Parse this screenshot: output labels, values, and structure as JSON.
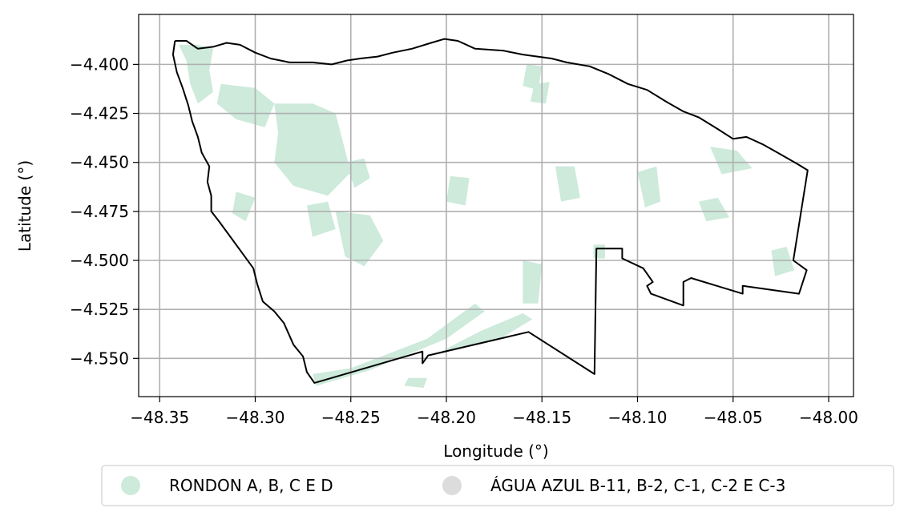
{
  "chart_data": {
    "type": "map",
    "xlabel": "Longitude (°)",
    "ylabel": "Latitude (°)",
    "xlim": [
      -48.361,
      -47.987
    ],
    "ylim": [
      -4.5695,
      -4.3745
    ],
    "x_ticks": [
      -48.35,
      -48.3,
      -48.25,
      -48.2,
      -48.15,
      -48.1,
      -48.05,
      -48.0
    ],
    "x_tick_labels": [
      "−48.35",
      "−48.30",
      "−48.25",
      "−48.20",
      "−48.15",
      "−48.10",
      "−48.05",
      "−48.00"
    ],
    "y_ticks": [
      -4.4,
      -4.425,
      -4.45,
      -4.475,
      -4.5,
      -4.525,
      -4.55
    ],
    "y_tick_labels": [
      "−4.400",
      "−4.425",
      "−4.450",
      "−4.475",
      "−4.500",
      "−4.525",
      "−4.550"
    ],
    "grid": true,
    "legend_position": "below",
    "colors": {
      "boundary": "#000000",
      "grid": "#b0b0b0",
      "rondon": "#cdeadb",
      "agua_azul": "#dcdcdc"
    },
    "legend": [
      {
        "label": "RONDON A, B, C E D",
        "color": "#cdeadb"
      },
      {
        "label": "ÁGUA AZUL B-11, B-2, C-1, C-2 E C-3",
        "color": "#dcdcdc"
      }
    ],
    "boundary": [
      [
        -48.342,
        -4.388
      ],
      [
        -48.336,
        -4.388
      ],
      [
        -48.33,
        -4.392
      ],
      [
        -48.322,
        -4.391
      ],
      [
        -48.315,
        -4.389
      ],
      [
        -48.308,
        -4.39
      ],
      [
        -48.3,
        -4.394
      ],
      [
        -48.292,
        -4.397
      ],
      [
        -48.282,
        -4.399
      ],
      [
        -48.27,
        -4.399
      ],
      [
        -48.26,
        -4.4
      ],
      [
        -48.252,
        -4.398
      ],
      [
        -48.245,
        -4.397
      ],
      [
        -48.236,
        -4.396
      ],
      [
        -48.228,
        -4.394
      ],
      [
        -48.218,
        -4.392
      ],
      [
        -48.208,
        -4.389
      ],
      [
        -48.201,
        -4.387
      ],
      [
        -48.194,
        -4.388
      ],
      [
        -48.185,
        -4.392
      ],
      [
        -48.17,
        -4.393
      ],
      [
        -48.16,
        -4.395
      ],
      [
        -48.145,
        -4.397
      ],
      [
        -48.137,
        -4.399
      ],
      [
        -48.125,
        -4.401
      ],
      [
        -48.115,
        -4.405
      ],
      [
        -48.105,
        -4.41
      ],
      [
        -48.095,
        -4.413
      ],
      [
        -48.085,
        -4.419
      ],
      [
        -48.076,
        -4.424
      ],
      [
        -48.068,
        -4.427
      ],
      [
        -48.058,
        -4.433
      ],
      [
        -48.05,
        -4.438
      ],
      [
        -48.043,
        -4.437
      ],
      [
        -48.034,
        -4.441
      ],
      [
        -48.025,
        -4.446
      ],
      [
        -48.016,
        -4.451
      ],
      [
        -48.011,
        -4.454
      ],
      [
        -48.0185,
        -4.5
      ],
      [
        -48.0115,
        -4.505
      ],
      [
        -48.0155,
        -4.517
      ],
      [
        -48.045,
        -4.513
      ],
      [
        -48.045,
        -4.517
      ],
      [
        -48.072,
        -4.509
      ],
      [
        -48.076,
        -4.511
      ],
      [
        -48.076,
        -4.523
      ],
      [
        -48.093,
        -4.517
      ],
      [
        -48.095,
        -4.513
      ],
      [
        -48.092,
        -4.511
      ],
      [
        -48.097,
        -4.504
      ],
      [
        -48.108,
        -4.499
      ],
      [
        -48.108,
        -4.494
      ],
      [
        -48.1215,
        -4.494
      ],
      [
        -48.1225,
        -4.558
      ],
      [
        -48.157,
        -4.5365
      ],
      [
        -48.2095,
        -4.5485
      ],
      [
        -48.2125,
        -4.5525
      ],
      [
        -48.2125,
        -4.5465
      ],
      [
        -48.269,
        -4.5625
      ],
      [
        -48.273,
        -4.557
      ],
      [
        -48.275,
        -4.549
      ],
      [
        -48.28,
        -4.543
      ],
      [
        -48.285,
        -4.532
      ],
      [
        -48.29,
        -4.526
      ],
      [
        -48.296,
        -4.521
      ],
      [
        -48.299,
        -4.512
      ],
      [
        -48.301,
        -4.504
      ],
      [
        -48.307,
        -4.496
      ],
      [
        -48.313,
        -4.488
      ],
      [
        -48.319,
        -4.48
      ],
      [
        -48.323,
        -4.475
      ],
      [
        -48.323,
        -4.467
      ],
      [
        -48.325,
        -4.46
      ],
      [
        -48.324,
        -4.452
      ],
      [
        -48.328,
        -4.445
      ],
      [
        -48.33,
        -4.437
      ],
      [
        -48.333,
        -4.429
      ],
      [
        -48.335,
        -4.421
      ],
      [
        -48.338,
        -4.412
      ],
      [
        -48.341,
        -4.404
      ],
      [
        -48.343,
        -4.395
      ],
      [
        -48.342,
        -4.388
      ]
    ],
    "rondon_areas": [
      [
        [
          -48.34,
          -4.39
        ],
        [
          -48.33,
          -4.39
        ],
        [
          -48.322,
          -4.392
        ],
        [
          -48.324,
          -4.403
        ],
        [
          -48.322,
          -4.414
        ],
        [
          -48.33,
          -4.42
        ],
        [
          -48.334,
          -4.41
        ],
        [
          -48.336,
          -4.398
        ]
      ],
      [
        [
          -48.318,
          -4.41
        ],
        [
          -48.3,
          -4.412
        ],
        [
          -48.29,
          -4.42
        ],
        [
          -48.295,
          -4.432
        ],
        [
          -48.31,
          -4.428
        ],
        [
          -48.32,
          -4.42
        ]
      ],
      [
        [
          -48.29,
          -4.42
        ],
        [
          -48.27,
          -4.42
        ],
        [
          -48.258,
          -4.425
        ],
        [
          -48.254,
          -4.44
        ],
        [
          -48.25,
          -4.455
        ],
        [
          -48.262,
          -4.467
        ],
        [
          -48.28,
          -4.462
        ],
        [
          -48.29,
          -4.45
        ],
        [
          -48.288,
          -4.435
        ]
      ],
      [
        [
          -48.253,
          -4.45
        ],
        [
          -48.243,
          -4.448
        ],
        [
          -48.24,
          -4.458
        ],
        [
          -48.248,
          -4.463
        ]
      ],
      [
        [
          -48.258,
          -4.475
        ],
        [
          -48.24,
          -4.477
        ],
        [
          -48.233,
          -4.49
        ],
        [
          -48.243,
          -4.503
        ],
        [
          -48.253,
          -4.498
        ]
      ],
      [
        [
          -48.273,
          -4.472
        ],
        [
          -48.262,
          -4.47
        ],
        [
          -48.258,
          -4.484
        ],
        [
          -48.27,
          -4.488
        ]
      ],
      [
        [
          -48.31,
          -4.465
        ],
        [
          -48.3,
          -4.468
        ],
        [
          -48.305,
          -4.48
        ],
        [
          -48.312,
          -4.476
        ]
      ],
      [
        [
          -48.25,
          -4.555
        ],
        [
          -48.21,
          -4.54
        ],
        [
          -48.185,
          -4.522
        ],
        [
          -48.18,
          -4.526
        ],
        [
          -48.2,
          -4.54
        ],
        [
          -48.24,
          -4.556
        ],
        [
          -48.268,
          -4.564
        ],
        [
          -48.27,
          -4.558
        ]
      ],
      [
        [
          -48.205,
          -4.548
        ],
        [
          -48.172,
          -4.54
        ],
        [
          -48.155,
          -4.53
        ],
        [
          -48.16,
          -4.527
        ],
        [
          -48.182,
          -4.536
        ],
        [
          -48.2,
          -4.545
        ]
      ],
      [
        [
          -48.1,
          -4.455
        ],
        [
          -48.09,
          -4.452
        ],
        [
          -48.088,
          -4.47
        ],
        [
          -48.096,
          -4.473
        ]
      ],
      [
        [
          -48.062,
          -4.442
        ],
        [
          -48.048,
          -4.444
        ],
        [
          -48.04,
          -4.453
        ],
        [
          -48.056,
          -4.456
        ]
      ],
      [
        [
          -48.143,
          -4.452
        ],
        [
          -48.133,
          -4.452
        ],
        [
          -48.13,
          -4.468
        ],
        [
          -48.14,
          -4.47
        ]
      ],
      [
        [
          -48.158,
          -4.4
        ],
        [
          -48.15,
          -4.401
        ],
        [
          -48.152,
          -4.413
        ],
        [
          -48.16,
          -4.411
        ]
      ],
      [
        [
          -48.154,
          -4.41
        ],
        [
          -48.146,
          -4.409
        ],
        [
          -48.148,
          -4.42
        ],
        [
          -48.156,
          -4.419
        ]
      ],
      [
        [
          -48.198,
          -4.457
        ],
        [
          -48.188,
          -4.458
        ],
        [
          -48.19,
          -4.472
        ],
        [
          -48.2,
          -4.47
        ]
      ],
      [
        [
          -48.16,
          -4.5
        ],
        [
          -48.15,
          -4.502
        ],
        [
          -48.152,
          -4.522
        ],
        [
          -48.16,
          -4.522
        ]
      ],
      [
        [
          -48.123,
          -4.492
        ],
        [
          -48.117,
          -4.492
        ],
        [
          -48.117,
          -4.499
        ],
        [
          -48.123,
          -4.499
        ]
      ],
      [
        [
          -48.068,
          -4.47
        ],
        [
          -48.058,
          -4.468
        ],
        [
          -48.052,
          -4.478
        ],
        [
          -48.064,
          -4.48
        ]
      ],
      [
        [
          -48.03,
          -4.495
        ],
        [
          -48.022,
          -4.493
        ],
        [
          -48.018,
          -4.505
        ],
        [
          -48.028,
          -4.508
        ]
      ],
      [
        [
          -48.22,
          -4.56
        ],
        [
          -48.21,
          -4.56
        ],
        [
          -48.212,
          -4.565
        ],
        [
          -48.222,
          -4.564
        ]
      ]
    ],
    "agua_azul_areas": []
  }
}
